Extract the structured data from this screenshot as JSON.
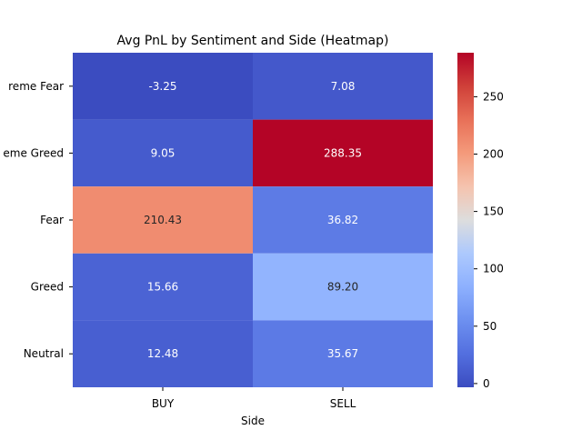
{
  "chart_data": {
    "type": "heatmap",
    "title": "Avg PnL by Sentiment and Side (Heatmap)",
    "xlabel": "Side",
    "ylabel": "",
    "x_categories": [
      "BUY",
      "SELL"
    ],
    "y_categories": [
      "Extreme Fear",
      "Extreme Greed",
      "Fear",
      "Greed",
      "Neutral"
    ],
    "y_tick_labels_visible": [
      "reme Fear",
      "eme Greed",
      "Fear",
      "Greed",
      "Neutral"
    ],
    "values": [
      [
        -3.25,
        7.08
      ],
      [
        9.05,
        288.35
      ],
      [
        210.43,
        36.82
      ],
      [
        15.66,
        89.2
      ],
      [
        12.48,
        35.67
      ]
    ],
    "value_labels": [
      [
        "-3.25",
        "7.08"
      ],
      [
        "9.05",
        "288.35"
      ],
      [
        "210.43",
        "36.82"
      ],
      [
        "15.66",
        "89.20"
      ],
      [
        "12.48",
        "35.67"
      ]
    ],
    "colorbar": {
      "min": -3.25,
      "max": 288.35,
      "ticks": [
        0,
        50,
        100,
        150,
        200,
        250
      ],
      "tick_labels": [
        "0",
        "50",
        "100",
        "150",
        "200",
        "250"
      ],
      "colormap": "coolwarm"
    },
    "colors": {
      "low": "#3b4cc0",
      "mid": "#dddddd",
      "high": "#b40426",
      "text_dark_bg": "#ffffff",
      "text_light_bg": "#262626",
      "axis": "#000000"
    },
    "grid": false
  }
}
